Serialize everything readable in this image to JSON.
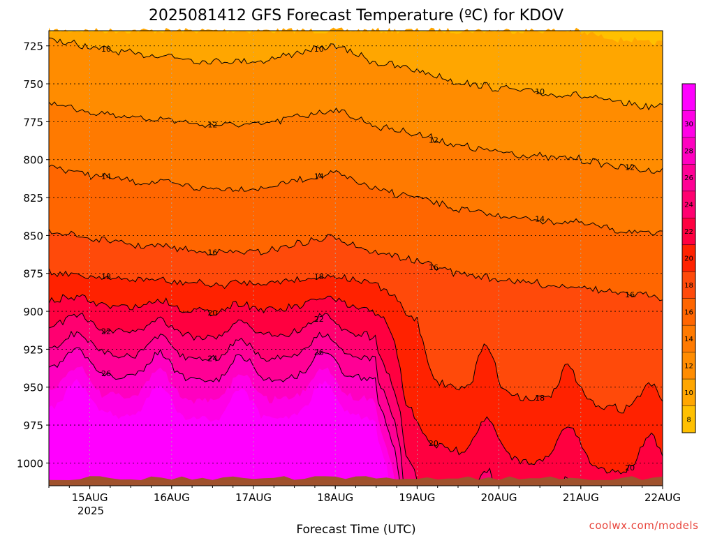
{
  "chart_data": {
    "type": "heatmap",
    "title": "2025081412 GFS Forecast Temperature (ºC) for KDOV",
    "xlabel": "Forecast Time (UTC)",
    "ylabel": "",
    "credit": "coolwx.com/models",
    "x_ticks": [
      "15AUG",
      "16AUG",
      "17AUG",
      "18AUG",
      "19AUG",
      "20AUG",
      "21AUG",
      "22AUG"
    ],
    "x_sublabel": "2025",
    "y_ticks": [
      "725",
      "750",
      "775",
      "800",
      "825",
      "850",
      "875",
      "900",
      "925",
      "950",
      "975",
      "1000"
    ],
    "x_range_days_after_14aug00z": [
      0.5,
      8.0
    ],
    "y_range_hpa": [
      715,
      1015
    ],
    "y_inverted": true,
    "surface_pressure_hpa": 1010,
    "grid": true,
    "colorbar": {
      "levels": [
        8,
        10,
        12,
        14,
        16,
        18,
        20,
        22,
        24,
        26,
        28,
        30
      ],
      "colors": [
        "#ffc000",
        "#ffa600",
        "#ff8c00",
        "#ff7a00",
        "#ff6600",
        "#ff4a0a",
        "#ff2200",
        "#ff0040",
        "#ff0070",
        "#ff0095",
        "#ff00c0",
        "#ff00e6",
        "#ff00ff"
      ]
    },
    "contours": [
      {
        "level": 10,
        "label": "10"
      },
      {
        "level": 12,
        "label": "12"
      },
      {
        "level": 14,
        "label": "14"
      },
      {
        "level": 16,
        "label": "16"
      },
      {
        "level": 18,
        "label": "18"
      },
      {
        "level": 20,
        "label": "20"
      },
      {
        "level": 22,
        "label": "22"
      },
      {
        "level": 24,
        "label": "24"
      },
      {
        "level": 26,
        "label": "26"
      }
    ]
  }
}
